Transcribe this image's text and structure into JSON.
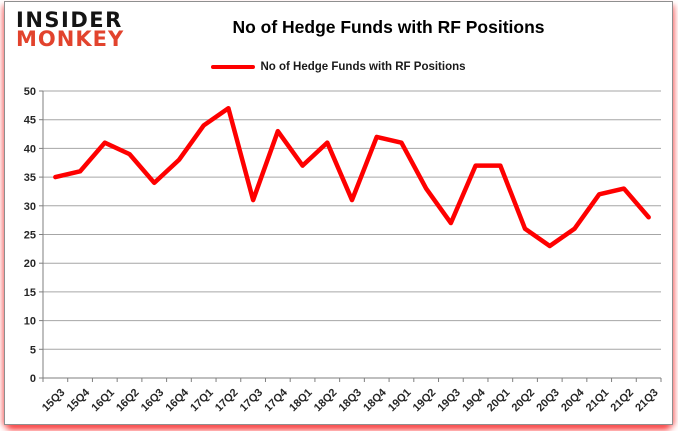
{
  "brand": {
    "line1": "INSIDER",
    "line2": "MONKEY",
    "accent_color": "#e2432d"
  },
  "header": {
    "title": "No of Hedge Funds with RF Positions"
  },
  "legend": {
    "label": "No of Hedge Funds with RF Positions",
    "swatch_color": "#fe0000"
  },
  "chart_data": {
    "type": "line",
    "title": "No of Hedge Funds with RF Positions",
    "categories": [
      "15Q3",
      "15Q4",
      "16Q1",
      "16Q2",
      "16Q3",
      "16Q4",
      "17Q1",
      "17Q2",
      "17Q3",
      "17Q4",
      "18Q1",
      "18Q2",
      "18Q3",
      "18Q4",
      "19Q1",
      "19Q2",
      "19Q3",
      "19Q4",
      "20Q1",
      "20Q2",
      "20Q3",
      "20Q4",
      "21Q1",
      "21Q2",
      "21Q3"
    ],
    "series": [
      {
        "name": "No of Hedge Funds with RF Positions",
        "color": "#fe0000",
        "values": [
          35,
          36,
          41,
          39,
          34,
          38,
          44,
          47,
          31,
          43,
          37,
          41,
          31,
          42,
          41,
          33,
          27,
          37,
          37,
          26,
          23,
          26,
          32,
          33,
          28
        ]
      }
    ],
    "xlabel": "",
    "ylabel": "",
    "ylim": [
      0,
      50
    ],
    "ytick_step": 5,
    "grid": true,
    "grid_color": "#a6a6a6",
    "axis_color": "#7f7f7f",
    "legend_position": "top"
  }
}
